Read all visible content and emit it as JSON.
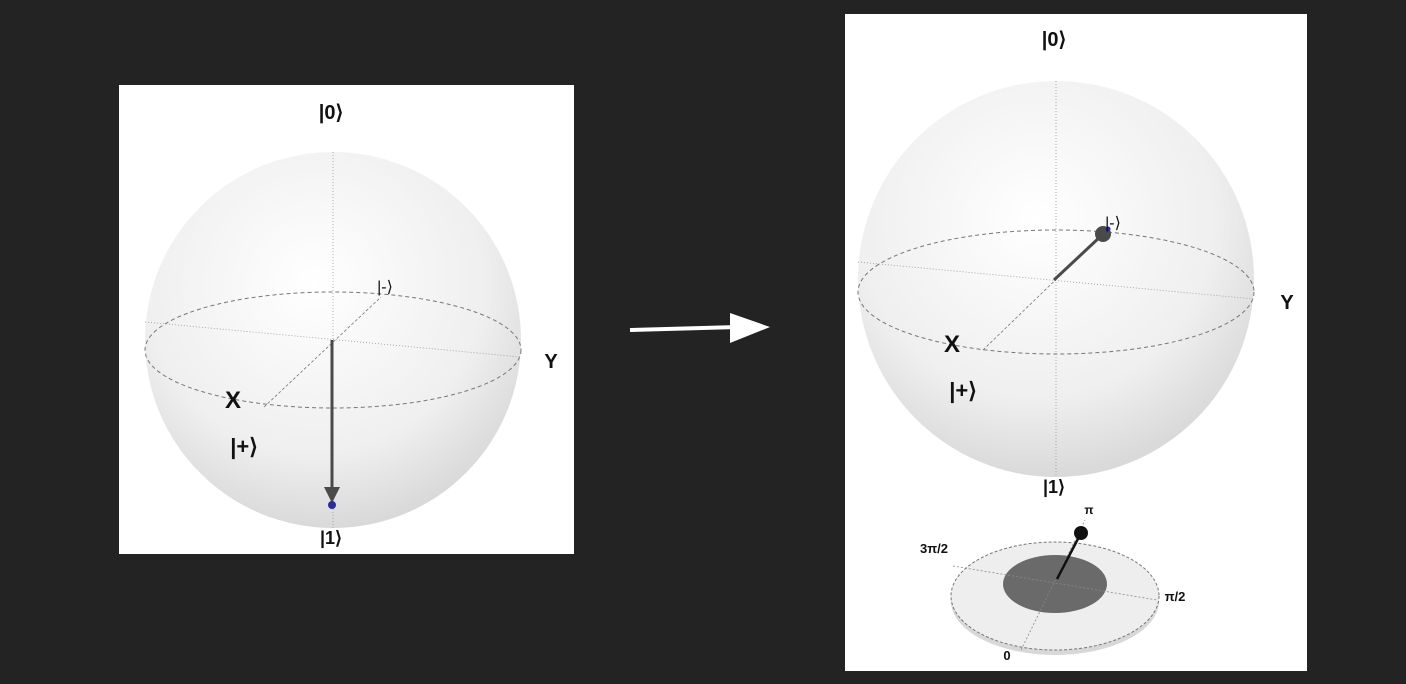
{
  "before": {
    "north_label": "|0⟩",
    "south_label": "|1⟩",
    "x_axis_label": "X",
    "y_axis_label": "Y",
    "plus_label": "|+⟩",
    "minus_label": "|-⟩",
    "state": "|1⟩"
  },
  "after": {
    "north_label": "|0⟩",
    "south_label": "|1⟩",
    "x_axis_label": "X",
    "y_axis_label": "Y",
    "plus_label": "|+⟩",
    "minus_label": "|-⟩",
    "state": "|-⟩",
    "phase_disk": {
      "label_0": "0",
      "label_pi_over_2": "π/2",
      "label_pi": "π",
      "label_3pi_over_2": "3π/2",
      "phase": "π"
    }
  },
  "colors": {
    "background": "#232323",
    "panel": "#ffffff",
    "state_vector": "#4a4a4a",
    "state_point": "#2b2b9a",
    "arrow": "#ffffff"
  }
}
